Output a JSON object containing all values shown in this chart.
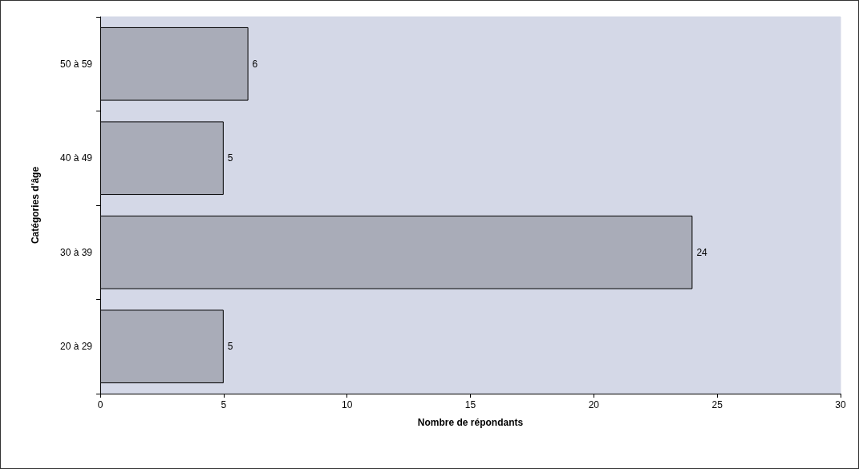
{
  "chart_data": {
    "type": "bar",
    "orientation": "horizontal",
    "categories": [
      "50 à 59",
      "40 à 49",
      "30 à 39",
      "20 à 29"
    ],
    "values": [
      6,
      5,
      24,
      5
    ],
    "color": "#a9acb8",
    "xlim": [
      0,
      30
    ],
    "xticks": [
      0,
      5,
      10,
      15,
      20,
      25,
      30
    ],
    "xlabel": "Nombre de répondants",
    "ylabel": "Catégories d'âge",
    "data_labels": true
  }
}
